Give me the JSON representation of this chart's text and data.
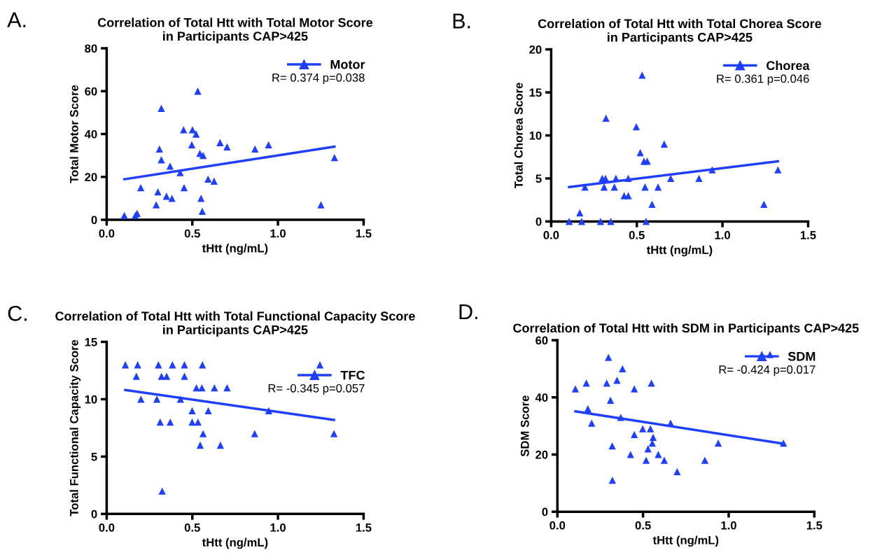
{
  "chart_data": [
    {
      "type": "scatter",
      "title": "Correlation of Total Htt with Total Motor Score\nin Participants CAP>425",
      "xlabel": "tHtt (ng/mL)",
      "ylabel": "Total Motor Score",
      "annotations": [
        "A.",
        "R= 0.374 p=0.038"
      ],
      "legend": "top right",
      "grid": false,
      "xlim": [
        0,
        1.5
      ],
      "xticks": [
        {
          "value": 0,
          "label": "0.0"
        },
        {
          "value": 0.5,
          "label": "0.5"
        },
        {
          "value": 1,
          "label": "1.0"
        },
        {
          "value": 1.5,
          "label": "1.5"
        }
      ],
      "ylim": [
        0,
        80
      ],
      "yticks": [
        0,
        20,
        40,
        60,
        80
      ],
      "series": [
        {
          "name": "Motor",
          "color": "#1f3fff",
          "marker": "triangle",
          "x": [
            0.103,
            0.167,
            0.178,
            0.199,
            0.289,
            0.299,
            0.308,
            0.319,
            0.319,
            0.349,
            0.37,
            0.381,
            0.429,
            0.449,
            0.452,
            0.497,
            0.501,
            0.522,
            0.532,
            0.544,
            0.551,
            0.563,
            0.558,
            0.592,
            0.627,
            0.662,
            0.703,
            0.866,
            0.945,
            1.251,
            1.33
          ],
          "values": [
            2,
            2,
            3,
            15,
            7,
            13,
            33,
            52,
            28,
            11,
            25,
            10,
            22,
            42,
            15,
            35,
            42,
            40,
            60,
            31,
            10,
            30,
            4,
            19,
            18,
            36,
            34,
            33,
            35,
            7,
            29
          ]
        },
        {
          "type": "line",
          "color": "#1f3fff",
          "x": [
            0.103,
            1.33
          ],
          "values": [
            18.9,
            34.1
          ]
        }
      ]
    },
    {
      "type": "scatter",
      "title": "Correlation of Total Htt with Total Chorea Score\nin Participants CAP>425",
      "xlabel": "tHtt (ng/mL)",
      "ylabel": "Total Chorea Score",
      "annotations": [
        "B.",
        "R= 0.361 p=0.046"
      ],
      "legend": "top right",
      "grid": false,
      "xlim": [
        0,
        1.5
      ],
      "xticks": [
        {
          "value": 0,
          "label": "0.0"
        },
        {
          "value": 0.5,
          "label": "0.5"
        },
        {
          "value": 1,
          "label": "1.0"
        },
        {
          "value": 1.5,
          "label": "1.5"
        }
      ],
      "ylim": [
        0,
        20
      ],
      "yticks": [
        0,
        5,
        10,
        15,
        20
      ],
      "series": [
        {
          "name": "Chorea",
          "color": "#1f3fff",
          "marker": "triangle",
          "x": [
            0.105,
            0.167,
            0.178,
            0.197,
            0.288,
            0.298,
            0.309,
            0.317,
            0.32,
            0.348,
            0.369,
            0.378,
            0.426,
            0.45,
            0.45,
            0.497,
            0.52,
            0.531,
            0.542,
            0.561,
            0.548,
            0.554,
            0.589,
            0.624,
            0.66,
            0.698,
            0.863,
            0.94,
            1.242,
            1.324
          ],
          "values": [
            0,
            1,
            0,
            4,
            0,
            5,
            4,
            5,
            12,
            0,
            4,
            5,
            3,
            3,
            5,
            11,
            8,
            17,
            7,
            7,
            4,
            0,
            2,
            4,
            9,
            5,
            5,
            6,
            2,
            6
          ]
        },
        {
          "type": "line",
          "color": "#1f3fff",
          "x": [
            0.105,
            1.324
          ],
          "values": [
            4.0,
            7.0
          ]
        }
      ]
    },
    {
      "type": "scatter",
      "title": "Correlation of Total Htt with Total Functional Capacity Score\nin Participants CAP>425",
      "xlabel": "tHtt (ng/mL)",
      "ylabel": "Total Functional Capacity Score",
      "annotations": [
        "C.",
        "R= -0.345 p=0.057"
      ],
      "legend": "right",
      "grid": false,
      "xlim": [
        0,
        1.5
      ],
      "xticks": [
        {
          "value": 0,
          "label": "0.0"
        },
        {
          "value": 0.5,
          "label": "0.5"
        },
        {
          "value": 1,
          "label": "1.0"
        },
        {
          "value": 1.5,
          "label": "1.5"
        }
      ],
      "ylim": [
        0,
        15
      ],
      "yticks": [
        0,
        5,
        10,
        15
      ],
      "series": [
        {
          "name": "TFC",
          "color": "#1f3fff",
          "marker": "triangle",
          "x": [
            0.109,
            0.181,
            0.173,
            0.2,
            0.302,
            0.293,
            0.312,
            0.32,
            0.35,
            0.324,
            0.371,
            0.384,
            0.454,
            0.454,
            0.431,
            0.499,
            0.499,
            0.533,
            0.524,
            0.556,
            0.559,
            0.563,
            0.546,
            0.593,
            0.629,
            0.664,
            0.703,
            0.864,
            0.946,
            1.245,
            1.327
          ],
          "values": [
            13,
            13,
            12,
            10,
            13,
            10,
            8,
            12,
            12,
            2,
            8,
            13,
            13,
            12,
            10,
            9,
            8,
            8,
            11,
            11,
            13,
            7,
            6,
            9,
            11,
            6,
            11,
            7,
            9,
            13,
            7
          ]
        },
        {
          "type": "line",
          "color": "#1f3fff",
          "x": [
            0.109,
            1.327
          ],
          "values": [
            10.8,
            8.2
          ]
        }
      ]
    },
    {
      "type": "scatter",
      "title": "Correlation of Total Htt with SDM in Participants CAP>425",
      "xlabel": "tHtt (ng/mL)",
      "ylabel": "SDM Score",
      "annotations": [
        "D.",
        "R= -0.424 p=0.017"
      ],
      "legend": "top right",
      "grid": false,
      "xlim": [
        0,
        1.5
      ],
      "xticks": [
        {
          "value": 0,
          "label": "0.0"
        },
        {
          "value": 0.5,
          "label": "0.5"
        },
        {
          "value": 1,
          "label": "1.0"
        },
        {
          "value": 1.5,
          "label": "1.5"
        }
      ],
      "ylim": [
        0,
        60
      ],
      "yticks": [
        0,
        20,
        40,
        60
      ],
      "series": [
        {
          "name": "SDM",
          "color": "#1f3fff",
          "marker": "triangle",
          "x": [
            0.105,
            0.169,
            0.178,
            0.2,
            0.288,
            0.298,
            0.31,
            0.32,
            0.321,
            0.348,
            0.37,
            0.38,
            0.427,
            0.449,
            0.449,
            0.498,
            0.518,
            0.529,
            0.543,
            0.549,
            0.559,
            0.554,
            0.589,
            0.624,
            0.661,
            0.699,
            0.861,
            0.939,
            1.241,
            1.32
          ],
          "values": [
            43,
            45,
            36,
            31,
            45,
            54,
            39,
            23,
            11,
            46,
            33,
            50,
            20,
            43,
            27,
            29,
            18,
            22,
            29,
            45,
            26,
            24,
            20,
            18,
            31,
            14,
            18,
            24,
            55,
            24
          ]
        },
        {
          "type": "line",
          "color": "#1f3fff",
          "x": [
            0.105,
            1.32
          ],
          "values": [
            35.1,
            23.8
          ]
        }
      ]
    }
  ]
}
